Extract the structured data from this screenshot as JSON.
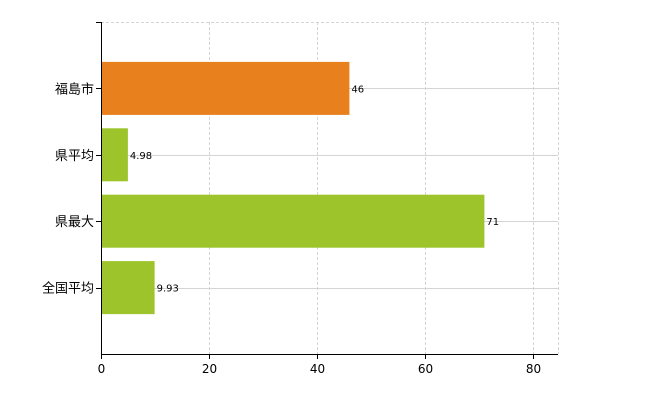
{
  "chart_data": {
    "type": "bar",
    "orientation": "horizontal",
    "categories": [
      "福島市",
      "県平均",
      "県最大",
      "全国平均"
    ],
    "values": [
      46,
      4.98,
      71,
      9.93
    ],
    "data_labels": [
      "46",
      "4.98",
      "71",
      "9.93"
    ],
    "bar_colors": [
      "#e8801e",
      "#9dc42a",
      "#9dc42a",
      "#9dc42a"
    ],
    "title": "",
    "xlabel": "",
    "ylabel": "",
    "xlim": [
      0,
      85
    ],
    "xticks": [
      0,
      20,
      40,
      60,
      80
    ],
    "xtick_labels": [
      "0",
      "20",
      "40",
      "60",
      "80"
    ],
    "grid": true,
    "legend": "none"
  }
}
